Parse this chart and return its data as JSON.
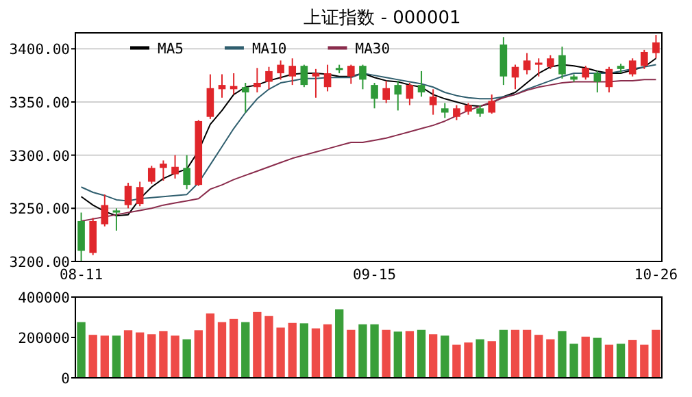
{
  "chart_data": [
    {
      "type": "candlestick",
      "title": "上证指数 - 000001",
      "categories": [
        "08-11",
        null,
        null,
        null,
        null,
        null,
        null,
        null,
        null,
        null,
        null,
        null,
        null,
        null,
        null,
        null,
        null,
        null,
        null,
        null,
        null,
        null,
        null,
        null,
        null,
        "09-15",
        null,
        null,
        null,
        null,
        null,
        null,
        null,
        null,
        null,
        null,
        null,
        null,
        null,
        null,
        null,
        null,
        null,
        null,
        null,
        null,
        null,
        null,
        null,
        "10-26"
      ],
      "ohlc": [
        [
          3238,
          3246,
          3200,
          3210
        ],
        [
          3208,
          3241,
          3206,
          3238
        ],
        [
          3235,
          3263,
          3233,
          3253
        ],
        [
          3248,
          3250,
          3229,
          3246
        ],
        [
          3253,
          3274,
          3250,
          3271
        ],
        [
          3254,
          3275,
          3252,
          3270
        ],
        [
          3275,
          3290,
          3273,
          3288
        ],
        [
          3288,
          3295,
          3276,
          3292
        ],
        [
          3282,
          3300,
          3278,
          3289
        ],
        [
          3288,
          3300,
          3268,
          3272
        ],
        [
          3272,
          3333,
          3271,
          3332
        ],
        [
          3336,
          3376,
          3334,
          3363
        ],
        [
          3362,
          3376,
          3354,
          3366
        ],
        [
          3362,
          3377,
          3357,
          3365
        ],
        [
          3364,
          3368,
          3340,
          3359
        ],
        [
          3364,
          3382,
          3359,
          3368
        ],
        [
          3369,
          3383,
          3362,
          3379
        ],
        [
          3377,
          3389,
          3371,
          3385
        ],
        [
          3374,
          3391,
          3366,
          3384
        ],
        [
          3384,
          3385,
          3364,
          3366
        ],
        [
          3374,
          3381,
          3354,
          3377
        ],
        [
          3364,
          3385,
          3360,
          3377
        ],
        [
          3382,
          3385,
          3377,
          3380
        ],
        [
          3374,
          3385,
          3367,
          3384
        ],
        [
          3384,
          3385,
          3362,
          3371
        ],
        [
          3366,
          3368,
          3344,
          3353
        ],
        [
          3352,
          3370,
          3349,
          3363
        ],
        [
          3366,
          3370,
          3342,
          3357
        ],
        [
          3353,
          3368,
          3347,
          3366
        ],
        [
          3366,
          3379,
          3355,
          3359
        ],
        [
          3347,
          3362,
          3338,
          3355
        ],
        [
          3344,
          3349,
          3335,
          3340
        ],
        [
          3336,
          3347,
          3333,
          3344
        ],
        [
          3341,
          3349,
          3338,
          3347
        ],
        [
          3344,
          3347,
          3336,
          3339
        ],
        [
          3340,
          3357,
          3339,
          3351
        ],
        [
          3404,
          3411,
          3366,
          3374
        ],
        [
          3373,
          3385,
          3362,
          3383
        ],
        [
          3380,
          3396,
          3376,
          3389
        ],
        [
          3385,
          3391,
          3374,
          3387
        ],
        [
          3383,
          3394,
          3381,
          3391
        ],
        [
          3394,
          3402,
          3372,
          3376
        ],
        [
          3374,
          3376,
          3369,
          3371
        ],
        [
          3373,
          3384,
          3371,
          3382
        ],
        [
          3377,
          3379,
          3359,
          3369
        ],
        [
          3364,
          3383,
          3359,
          3381
        ],
        [
          3384,
          3386,
          3377,
          3381
        ],
        [
          3376,
          3391,
          3374,
          3389
        ],
        [
          3384,
          3399,
          3381,
          3397
        ],
        [
          3396,
          3413,
          3391,
          3406
        ]
      ],
      "colors": [
        "#2e9a38",
        "#e0262b",
        "#e0262b",
        "#2e9a38",
        "#e0262b",
        "#e0262b",
        "#e0262b",
        "#e0262b",
        "#e0262b",
        "#2e9a38",
        "#e0262b",
        "#e0262b",
        "#e0262b",
        "#e0262b",
        "#2e9a38",
        "#e0262b",
        "#e0262b",
        "#e0262b",
        "#e0262b",
        "#2e9a38",
        "#e0262b",
        "#e0262b",
        "#2e9a38",
        "#e0262b",
        "#2e9a38",
        "#2e9a38",
        "#e0262b",
        "#2e9a38",
        "#e0262b",
        "#2e9a38",
        "#e0262b",
        "#2e9a38",
        "#e0262b",
        "#e0262b",
        "#2e9a38",
        "#e0262b",
        "#2e9a38",
        "#e0262b",
        "#e0262b",
        "#e0262b",
        "#e0262b",
        "#2e9a38",
        "#2e9a38",
        "#e0262b",
        "#2e9a38",
        "#e0262b",
        "#2e9a38",
        "#e0262b",
        "#e0262b",
        "#e0262b"
      ],
      "series": [
        {
          "type": "line",
          "name": "MA5",
          "color": "#000000",
          "values": [
            3261,
            3253,
            3247,
            3243,
            3244,
            3259,
            3270,
            3278,
            3283,
            3287,
            3304,
            3329,
            3342,
            3357,
            3364,
            3366,
            3370,
            3373,
            3376,
            3377,
            3377,
            3376,
            3374,
            3374,
            3377,
            3373,
            3370,
            3369,
            3366,
            3364,
            3357,
            3353,
            3350,
            3347,
            3346,
            3349,
            3355,
            3359,
            3368,
            3377,
            3383,
            3385,
            3384,
            3382,
            3379,
            3377,
            3377,
            3380,
            3383,
            3391
          ]
        },
        {
          "type": "line",
          "name": "MA10",
          "color": "#2f5e6e",
          "values": [
            3270,
            3265,
            3262,
            3258,
            3257,
            3259,
            3260,
            3261,
            3262,
            3263,
            3274,
            3291,
            3308,
            3325,
            3340,
            3353,
            3362,
            3368,
            3370,
            3372,
            3372,
            3373,
            3373,
            3373,
            3377,
            3375,
            3373,
            3371,
            3369,
            3367,
            3364,
            3359,
            3356,
            3354,
            3353,
            3353,
            3355,
            3357,
            3362,
            3366,
            3370,
            3374,
            3377,
            3377,
            3377,
            3377,
            3379,
            3381,
            3383,
            3385
          ]
        },
        {
          "type": "line",
          "name": "MA30",
          "color": "#8a2c4c",
          "values": [
            3238,
            3240,
            3242,
            3244,
            3246,
            3248,
            3250,
            3253,
            3255,
            3257,
            3259,
            3268,
            3272,
            3277,
            3281,
            3285,
            3289,
            3293,
            3297,
            3300,
            3303,
            3306,
            3309,
            3312,
            3312,
            3314,
            3316,
            3319,
            3322,
            3325,
            3328,
            3332,
            3337,
            3342,
            3346,
            3350,
            3354,
            3357,
            3361,
            3364,
            3366,
            3368,
            3369,
            3369,
            3369,
            3369,
            3370,
            3370,
            3371,
            3371
          ]
        }
      ],
      "ylim": [
        3200,
        3415
      ],
      "yticks": [
        {
          "value": 3200,
          "label": "3200.00"
        },
        {
          "value": 3250,
          "label": "3250.00"
        },
        {
          "value": 3300,
          "label": "3300.00"
        },
        {
          "value": 3350,
          "label": "3350.00"
        },
        {
          "value": 3400,
          "label": "3400.00"
        }
      ],
      "grid": "y",
      "legend": "top"
    },
    {
      "type": "bar",
      "categories": [
        null,
        null,
        null,
        null,
        null,
        null,
        null,
        null,
        null,
        null,
        null,
        null,
        null,
        null,
        null,
        null,
        null,
        null,
        null,
        null,
        null,
        null,
        null,
        null,
        null,
        null,
        null,
        null,
        null,
        null,
        null,
        null,
        null,
        null,
        null,
        null,
        null,
        null,
        null,
        null,
        null,
        null,
        null,
        null,
        null,
        null,
        null,
        null,
        null,
        null
      ],
      "values": [
        276000,
        213000,
        209000,
        209000,
        236000,
        225000,
        216000,
        231000,
        209000,
        191000,
        236000,
        319000,
        276000,
        292000,
        276000,
        326000,
        306000,
        249000,
        272000,
        270000,
        245000,
        265000,
        339000,
        238000,
        265000,
        265000,
        238000,
        229000,
        231000,
        238000,
        216000,
        209000,
        164000,
        175000,
        191000,
        182000,
        238000,
        238000,
        238000,
        213000,
        191000,
        231000,
        169000,
        204000,
        198000,
        164000,
        169000,
        187000,
        164000,
        238000
      ],
      "colors": [
        "#3a9f3a",
        "#ee4b47",
        "#ee4b47",
        "#3a9f3a",
        "#ee4b47",
        "#ee4b47",
        "#ee4b47",
        "#ee4b47",
        "#ee4b47",
        "#3a9f3a",
        "#ee4b47",
        "#ee4b47",
        "#ee4b47",
        "#ee4b47",
        "#3a9f3a",
        "#ee4b47",
        "#ee4b47",
        "#ee4b47",
        "#ee4b47",
        "#3a9f3a",
        "#ee4b47",
        "#ee4b47",
        "#3a9f3a",
        "#ee4b47",
        "#3a9f3a",
        "#3a9f3a",
        "#ee4b47",
        "#3a9f3a",
        "#ee4b47",
        "#3a9f3a",
        "#ee4b47",
        "#3a9f3a",
        "#ee4b47",
        "#ee4b47",
        "#3a9f3a",
        "#ee4b47",
        "#3a9f3a",
        "#ee4b47",
        "#ee4b47",
        "#ee4b47",
        "#ee4b47",
        "#3a9f3a",
        "#3a9f3a",
        "#ee4b47",
        "#3a9f3a",
        "#ee4b47",
        "#3a9f3a",
        "#ee4b47",
        "#ee4b47",
        "#ee4b47"
      ],
      "ylim": [
        0,
        400000
      ],
      "yticks": [
        0,
        200000,
        400000
      ],
      "tick_labels": "y"
    }
  ]
}
